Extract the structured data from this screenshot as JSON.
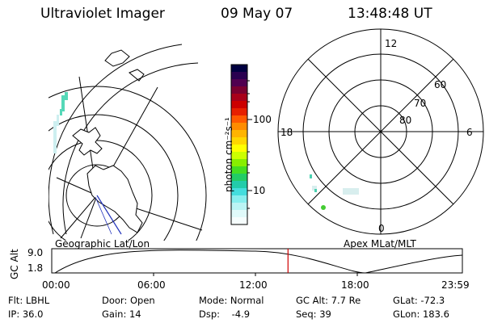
{
  "header": {
    "instrument": "Ultraviolet Imager",
    "date": "09 May 07",
    "time": "13:48:48 UT"
  },
  "colorbar": {
    "unit_label": "photon cm⁻²s⁻¹",
    "ticks": [
      "100",
      "10"
    ],
    "colors": [
      "#000040",
      "#2a0050",
      "#500050",
      "#7a0030",
      "#a8001a",
      "#cc0000",
      "#e62000",
      "#ff5a00",
      "#ff8c00",
      "#ffb400",
      "#ffd700",
      "#ffff00",
      "#ccff00",
      "#88ee00",
      "#44dd22",
      "#22cc66",
      "#22ccaa",
      "#44dddd",
      "#88eeee",
      "#bbf4f4",
      "#e0fafa",
      "#f6fdfd"
    ]
  },
  "left_map": {
    "label": "Geographic Lat/Lon"
  },
  "right_map": {
    "label": "Apex MLat/MLT",
    "mlt_labels": {
      "top": "12",
      "right": "6",
      "bottom": "0",
      "left": "18"
    },
    "lat_labels": [
      "60",
      "70",
      "80"
    ]
  },
  "altitude_plot": {
    "ylabel": "GC Alt",
    "yticks": [
      "9.0",
      "1.8"
    ],
    "xticks": [
      "00:00",
      "06:00",
      "12:00",
      "18:00",
      "23:59"
    ],
    "marker_time": "13:48",
    "marker_color": "#d00000"
  },
  "info": {
    "row1": [
      {
        "label": "Flt: LBHL"
      },
      {
        "label": "Door: Open"
      },
      {
        "label": "Mode: Normal"
      },
      {
        "label": "GC Alt: 7.7 Re"
      },
      {
        "label": "GLat: -72.3"
      }
    ],
    "row2": [
      {
        "label": "IP: 36.0"
      },
      {
        "label": "Gain: 14"
      },
      {
        "label": "Dsp:    -4.9"
      },
      {
        "label": "Seq: 39"
      },
      {
        "label": "GLon: 183.6"
      }
    ]
  }
}
